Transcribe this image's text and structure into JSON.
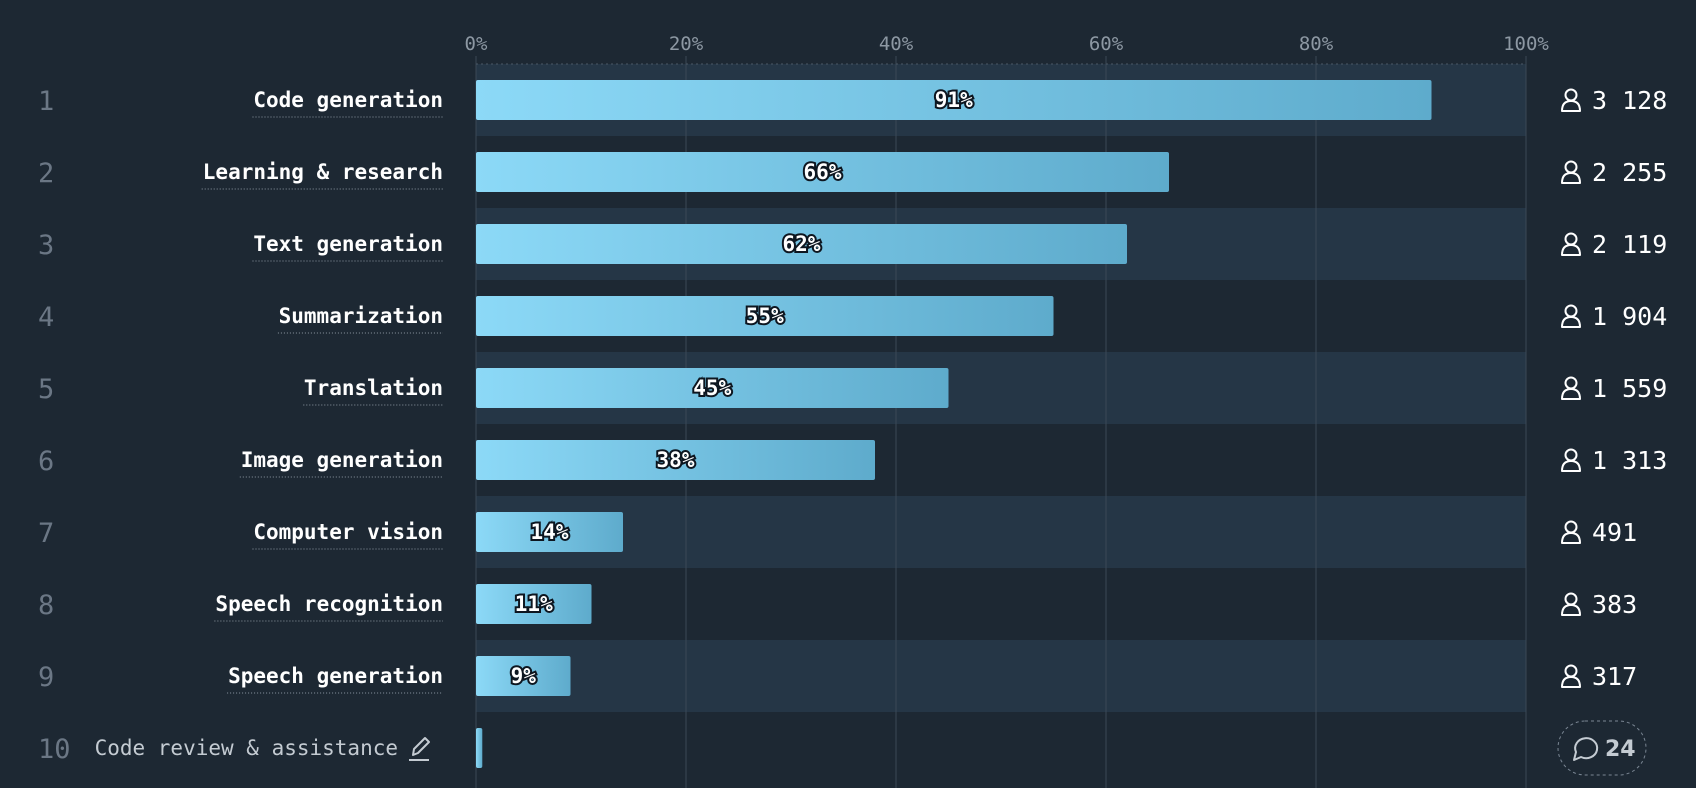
{
  "chart_data": {
    "type": "bar",
    "orientation": "horizontal",
    "xlim": [
      0,
      100
    ],
    "x_ticks": [
      "0%",
      "20%",
      "40%",
      "60%",
      "80%",
      "100%"
    ],
    "grid": true,
    "rows": [
      {
        "rank": "1",
        "category": "Code generation",
        "value": 91,
        "value_label": "91%",
        "count": "3 128"
      },
      {
        "rank": "2",
        "category": "Learning & research",
        "value": 66,
        "value_label": "66%",
        "count": "2 255"
      },
      {
        "rank": "3",
        "category": "Text generation",
        "value": 62,
        "value_label": "62%",
        "count": "2 119"
      },
      {
        "rank": "4",
        "category": "Summarization",
        "value": 55,
        "value_label": "55%",
        "count": "1 904"
      },
      {
        "rank": "5",
        "category": "Translation",
        "value": 45,
        "value_label": "45%",
        "count": "1 559"
      },
      {
        "rank": "6",
        "category": "Image generation",
        "value": 38,
        "value_label": "38%",
        "count": "1 313"
      },
      {
        "rank": "7",
        "category": "Computer vision",
        "value": 14,
        "value_label": "14%",
        "count": "491"
      },
      {
        "rank": "8",
        "category": "Speech recognition",
        "value": 11,
        "value_label": "11%",
        "count": "383"
      },
      {
        "rank": "9",
        "category": "Speech generation",
        "value": 9,
        "value_label": "9%",
        "count": "317"
      }
    ],
    "other_row": {
      "rank": "10",
      "category": "Code review & assistance",
      "value": 0.6,
      "comments": "24"
    }
  },
  "icons": {
    "count_icon": "user-icon",
    "edit_icon": "pencil-icon",
    "comment_icon": "speech-bubble-icon"
  },
  "colors": {
    "background": "#1d2833",
    "band": "#253646",
    "bar_start": "#8cd9f7",
    "bar_end": "#5eabcc",
    "grid": "#3b4856",
    "rank": "#6b7785",
    "tick": "#8d98a3"
  }
}
